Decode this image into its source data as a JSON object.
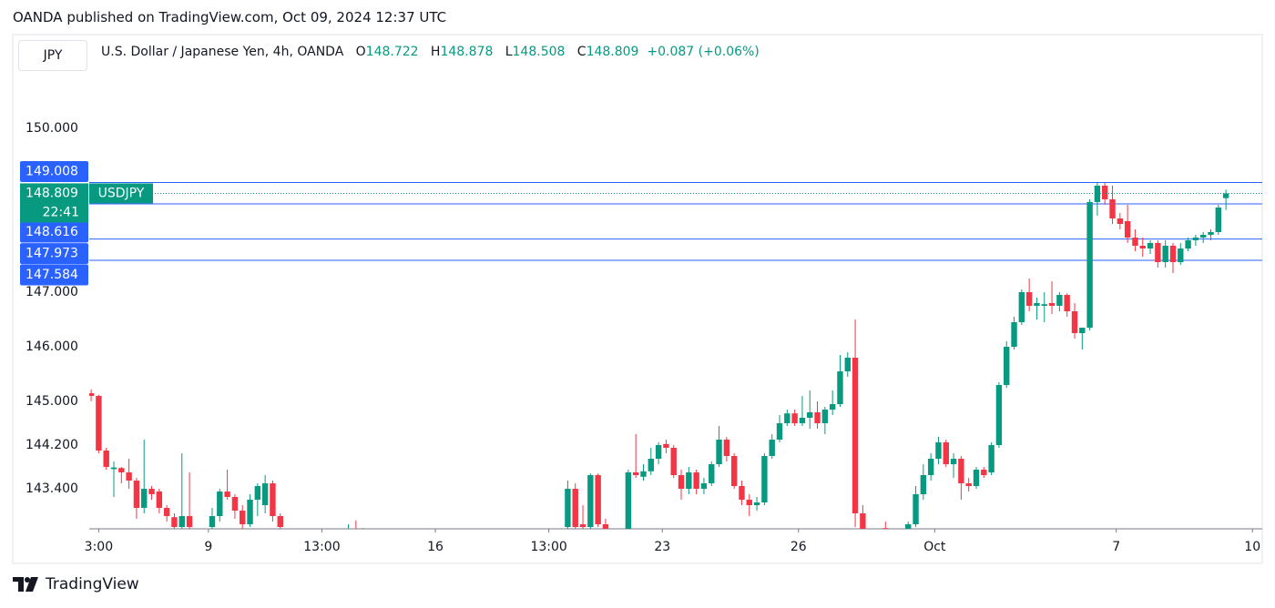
{
  "header": "OANDA published on TradingView.com, Oct 09, 2024 12:37 UTC",
  "footer": "TradingView",
  "chart_data": {
    "type": "candlestick",
    "symbol_box": "JPY",
    "title": "U.S. Dollar / Japanese Yen, 4h, OANDA",
    "series_name": "USDJPY",
    "countdown": "22:41",
    "change_label": "+0.087",
    "change_pct_label": "(+0.06%)",
    "up_color": "#089981",
    "down_color": "#f23645",
    "level_color": "#2962ff",
    "levels": [
      149.008,
      148.616,
      147.973,
      147.584
    ],
    "ylim": [
      142.667,
      151.683
    ],
    "yticks": [
      {
        "value": 150,
        "label": "150.000"
      },
      {
        "value": 147,
        "label": "147.000"
      },
      {
        "value": 146,
        "label": "146.000"
      },
      {
        "value": 145,
        "label": "145.000"
      },
      {
        "value": 144.2,
        "label": "144.200"
      },
      {
        "value": 143.4,
        "label": "143.400"
      }
    ],
    "xlim": [
      -0.25,
      154.8
    ],
    "xticks": [
      {
        "value": 1,
        "label": "3:00"
      },
      {
        "value": 15.5,
        "label": "9"
      },
      {
        "value": 30.5,
        "label": "13:00"
      },
      {
        "value": 45.5,
        "label": "16"
      },
      {
        "value": 60.5,
        "label": "13:00"
      },
      {
        "value": 75.5,
        "label": "23"
      },
      {
        "value": 93.5,
        "label": "26"
      },
      {
        "value": 111.5,
        "label": "Oct"
      },
      {
        "value": 135.5,
        "label": "7"
      },
      {
        "value": 153.5,
        "label": "10"
      }
    ],
    "open": [
      145.15,
      145.1,
      144.1,
      143.76,
      143.78,
      143.7,
      143.55,
      143.05,
      143.4,
      143.35,
      143.05,
      142.88,
      142.7,
      142.9,
      null,
      null,
      142.7,
      142.9,
      143.35,
      143.25,
      143.0,
      142.75,
      143.2,
      143.1,
      143.5,
      142.9,
      null,
      null,
      null,
      null,
      null,
      null,
      null,
      null,
      142.62,
      142.65,
      142.6,
      null,
      null,
      null,
      null,
      null,
      null,
      null,
      null,
      null,
      null,
      null,
      null,
      null,
      null,
      null,
      null,
      null,
      null,
      null,
      null,
      null,
      null,
      null,
      null,
      null,
      null,
      142.7,
      143.4,
      142.75,
      142.7,
      143.65,
      142.75,
      null,
      null,
      142.65,
      143.7,
      143.62,
      143.72,
      143.95,
      144.22,
      144.15,
      143.65,
      143.4,
      143.7,
      143.4,
      143.5,
      143.85,
      144.3,
      144.0,
      143.45,
      143.2,
      143.1,
      143.15,
      144.0,
      144.3,
      144.6,
      144.78,
      144.6,
      144.7,
      144.8,
      144.6,
      144.85,
      144.95,
      145.55,
      145.8,
      142.95,
      null,
      null,
      142.68,
      null,
      null,
      142.6,
      142.75,
      143.3,
      143.65,
      143.95,
      144.25,
      143.85,
      143.95,
      143.5,
      143.45,
      143.75,
      143.7,
      144.2,
      145.3,
      146.0,
      146.45,
      147.0,
      146.75,
      146.75,
      146.8,
      146.75,
      146.95,
      146.65,
      146.25,
      146.35,
      148.65,
      148.95,
      148.7,
      148.35,
      148.3,
      148.0,
      147.85,
      147.8,
      147.9,
      147.55,
      147.85,
      147.55,
      147.8,
      147.95,
      148.0,
      148.05,
      148.1,
      148.722
    ],
    "high": [
      145.22,
      145.12,
      144.15,
      143.9,
      143.8,
      143.95,
      143.6,
      144.3,
      143.45,
      143.4,
      143.1,
      142.95,
      144.05,
      143.7,
      null,
      null,
      143.05,
      143.4,
      143.75,
      143.3,
      143.1,
      143.3,
      143.5,
      143.65,
      143.55,
      142.95,
      null,
      null,
      null,
      null,
      null,
      null,
      null,
      null,
      142.75,
      142.82,
      142.68,
      null,
      null,
      null,
      null,
      null,
      null,
      null,
      null,
      null,
      null,
      null,
      null,
      null,
      null,
      null,
      null,
      null,
      null,
      null,
      null,
      null,
      null,
      null,
      null,
      null,
      null,
      143.55,
      143.5,
      143.1,
      143.68,
      143.68,
      142.85,
      null,
      null,
      143.75,
      144.4,
      143.85,
      144.15,
      144.25,
      144.3,
      144.2,
      143.75,
      143.8,
      143.75,
      143.6,
      143.9,
      144.55,
      144.35,
      144.05,
      143.55,
      143.3,
      143.25,
      144.05,
      144.4,
      144.75,
      144.85,
      144.85,
      145.1,
      145.2,
      145.0,
      144.9,
      145.2,
      145.85,
      145.9,
      146.5,
      143.1,
      null,
      null,
      142.8,
      null,
      null,
      142.8,
      143.45,
      143.85,
      144.05,
      144.35,
      144.3,
      144.05,
      144.0,
      143.6,
      143.8,
      143.8,
      144.25,
      145.35,
      146.1,
      146.55,
      147.05,
      147.25,
      146.9,
      147.0,
      147.2,
      147.0,
      146.98,
      146.8,
      146.35,
      148.7,
      149.0,
      149.0,
      148.95,
      148.45,
      148.6,
      148.15,
      148.0,
      147.95,
      147.95,
      147.95,
      147.9,
      147.9,
      148.0,
      148.05,
      148.1,
      148.15,
      148.6,
      148.878
    ],
    "low": [
      145.0,
      144.05,
      143.75,
      143.25,
      143.5,
      143.4,
      142.85,
      142.95,
      143.2,
      142.95,
      142.8,
      142.65,
      142.6,
      142.6,
      null,
      null,
      142.6,
      142.8,
      143.2,
      142.85,
      142.65,
      142.7,
      142.9,
      142.95,
      142.8,
      142.6,
      null,
      null,
      null,
      null,
      null,
      null,
      null,
      null,
      142.55,
      142.55,
      142.55,
      null,
      null,
      null,
      null,
      null,
      null,
      null,
      null,
      null,
      null,
      null,
      null,
      null,
      null,
      null,
      null,
      null,
      null,
      null,
      null,
      null,
      null,
      null,
      null,
      null,
      null,
      142.65,
      142.65,
      142.6,
      142.6,
      142.7,
      142.55,
      null,
      null,
      142.6,
      143.6,
      143.55,
      143.65,
      143.85,
      144.05,
      143.6,
      143.2,
      143.3,
      143.3,
      143.3,
      143.45,
      143.8,
      143.9,
      143.4,
      143.1,
      142.9,
      143.0,
      143.1,
      143.95,
      144.25,
      144.55,
      144.55,
      144.55,
      144.5,
      144.5,
      144.4,
      144.75,
      144.9,
      145.45,
      142.7,
      142.55,
      null,
      null,
      142.55,
      null,
      null,
      142.5,
      142.7,
      143.2,
      143.55,
      143.85,
      143.8,
      143.6,
      143.2,
      143.35,
      143.4,
      143.6,
      143.65,
      144.15,
      145.25,
      145.95,
      146.4,
      146.65,
      146.5,
      146.45,
      146.6,
      146.65,
      146.55,
      146.15,
      145.95,
      146.3,
      148.4,
      148.6,
      148.25,
      148.15,
      147.9,
      147.75,
      147.65,
      147.7,
      147.45,
      147.45,
      147.35,
      147.5,
      147.75,
      147.85,
      147.9,
      147.95,
      148.05,
      148.508
    ],
    "close": [
      145.1,
      144.1,
      143.8,
      143.79,
      143.7,
      143.55,
      143.05,
      143.4,
      143.3,
      143.05,
      142.9,
      142.7,
      142.9,
      142.7,
      null,
      null,
      142.9,
      143.35,
      143.25,
      143.0,
      142.75,
      143.2,
      143.45,
      143.5,
      142.9,
      142.7,
      null,
      null,
      null,
      null,
      null,
      null,
      null,
      null,
      142.65,
      142.62,
      142.62,
      null,
      null,
      null,
      null,
      null,
      null,
      null,
      null,
      null,
      null,
      null,
      null,
      null,
      null,
      null,
      null,
      null,
      null,
      null,
      null,
      null,
      null,
      null,
      null,
      null,
      null,
      143.4,
      142.7,
      142.7,
      143.65,
      142.75,
      142.6,
      null,
      null,
      143.7,
      143.65,
      143.72,
      143.95,
      144.2,
      144.15,
      143.65,
      143.4,
      143.7,
      143.4,
      143.5,
      143.85,
      144.3,
      144.0,
      143.45,
      143.2,
      143.1,
      143.15,
      144.0,
      144.3,
      144.6,
      144.78,
      144.6,
      144.7,
      144.8,
      144.6,
      144.85,
      144.95,
      145.55,
      145.8,
      142.95,
      142.6,
      null,
      null,
      142.62,
      null,
      null,
      142.75,
      143.3,
      143.65,
      143.95,
      144.25,
      143.85,
      143.95,
      143.5,
      143.45,
      143.75,
      143.65,
      144.2,
      145.3,
      146.0,
      146.45,
      147.0,
      146.75,
      146.8,
      146.78,
      146.75,
      146.95,
      146.65,
      146.25,
      146.35,
      148.65,
      148.95,
      148.7,
      148.35,
      148.25,
      148.0,
      147.85,
      147.8,
      147.9,
      147.55,
      147.85,
      147.55,
      147.8,
      147.95,
      148.0,
      148.05,
      148.1,
      148.55,
      148.809
    ]
  }
}
